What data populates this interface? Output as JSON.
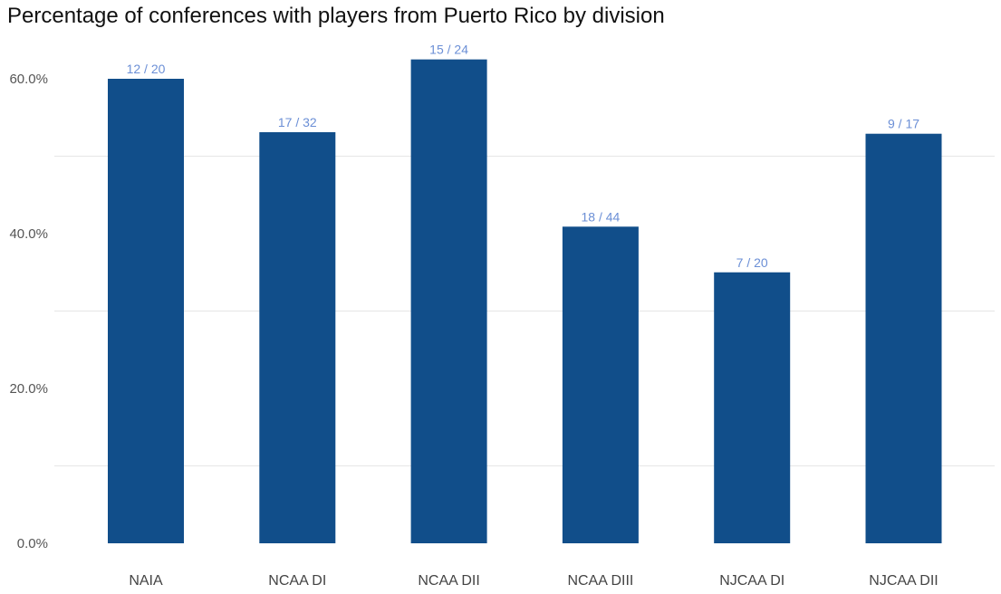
{
  "chart_data": {
    "type": "bar",
    "title": "Percentage of conferences with players from Puerto Rico by division",
    "categories": [
      "NAIA",
      "NCAA DI",
      "NCAA DII",
      "NCAA DIII",
      "NJCAA DI",
      "NJCAA DII"
    ],
    "values": [
      60.0,
      53.1,
      62.5,
      40.9,
      35.0,
      52.9
    ],
    "data_labels": [
      "12  /  20",
      "17  /  32",
      "15  /  24",
      "18  /  44",
      "7  /  20",
      "9  /  17"
    ],
    "y_ticks": [
      0,
      20,
      40,
      60
    ],
    "y_tick_labels": [
      "0.0%",
      "20.0%",
      "40.0%",
      "60.0%"
    ],
    "minor_gridlines": [
      10,
      30,
      50
    ],
    "ylim": [
      0,
      70
    ],
    "xlabel": "",
    "ylabel": "",
    "grid": true,
    "colors": {
      "bar": "#114e8a",
      "data_label": "#6b8fd6",
      "grid": "#e6e6e6"
    }
  }
}
